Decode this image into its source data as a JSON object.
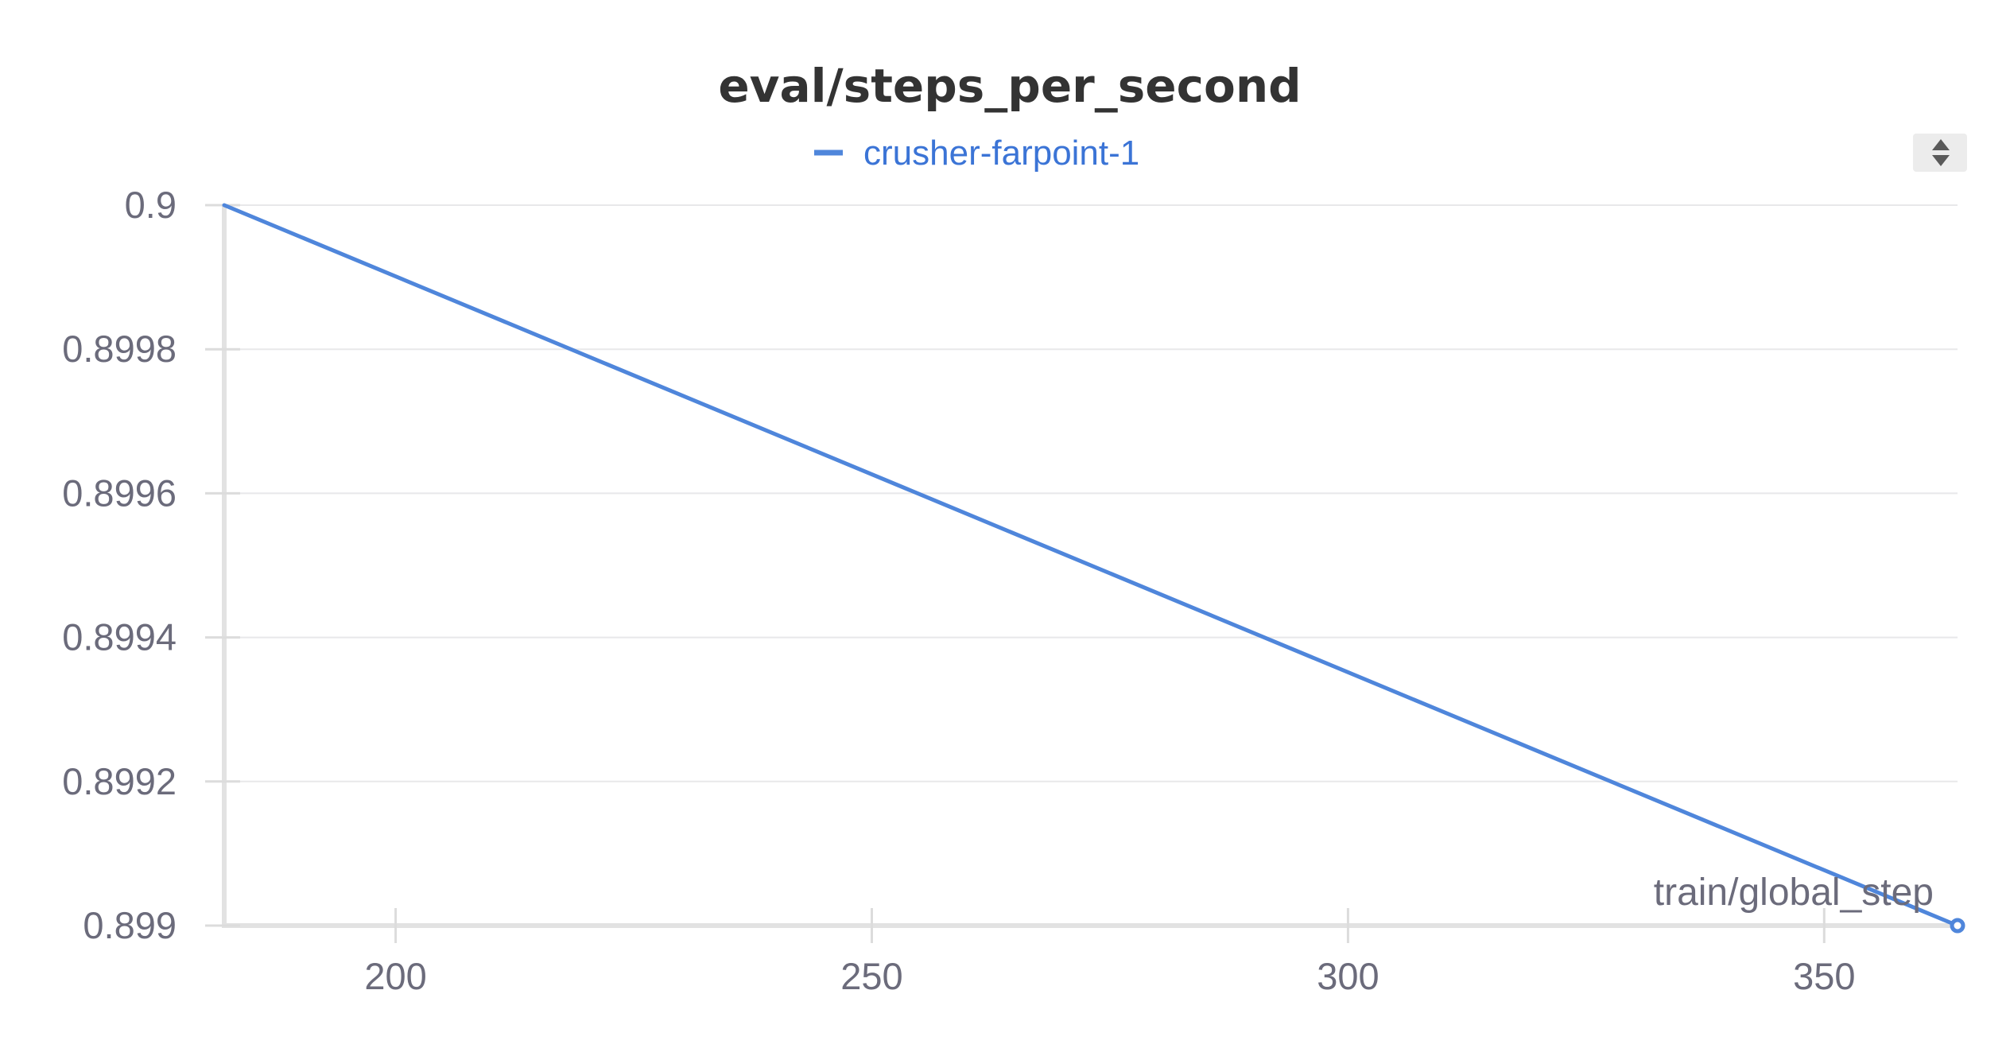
{
  "chart_data": {
    "type": "line",
    "title": "eval/steps_per_second",
    "xlabel": "train/global_step",
    "ylabel": "",
    "xlim": [
      182,
      364
    ],
    "ylim": [
      0.899,
      0.9
    ],
    "x_ticks": [
      200,
      250,
      300,
      350
    ],
    "x_tick_labels": [
      "200",
      "250",
      "300",
      "350"
    ],
    "y_ticks": [
      0.899,
      0.8992,
      0.8994,
      0.8996,
      0.8998,
      0.9
    ],
    "y_tick_labels": [
      "0.899",
      "0.8992",
      "0.8994",
      "0.8996",
      "0.8998",
      "0.9"
    ],
    "grid": true,
    "legend_position": "top-center",
    "series": [
      {
        "name": "crusher-farpoint-1",
        "color": "#4f86db",
        "x": [
          182,
          364
        ],
        "y": [
          0.9,
          0.899
        ]
      }
    ]
  },
  "controls": {
    "legend_scroll_icon": "up-down-arrows-icon"
  }
}
